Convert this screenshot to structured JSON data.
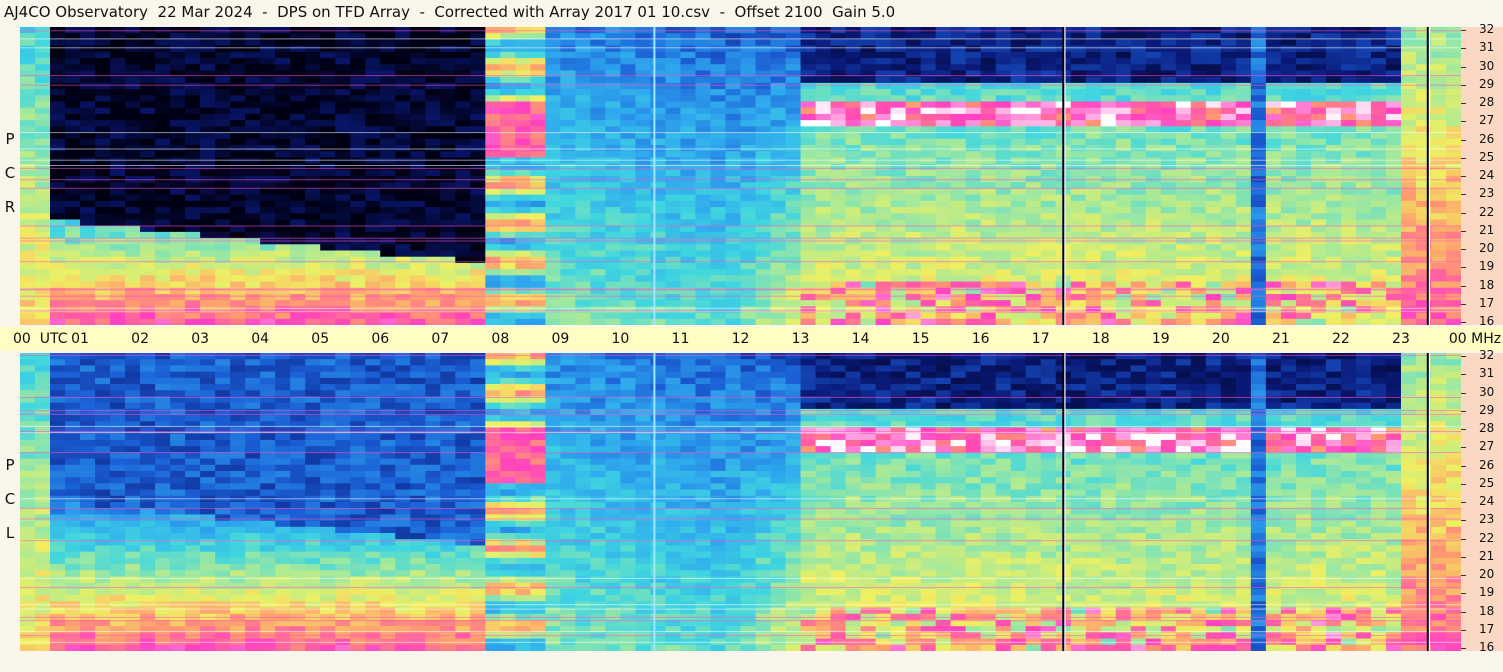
{
  "header": {
    "title": "AJ4CO Observatory  22 Mar 2024  -  DPS on TFD Array  -  Corrected with Array 2017 01 10.csv  -  Offset 2100  Gain 5.0"
  },
  "chart_data": {
    "type": "heatmap",
    "x_axis": {
      "range": [
        0,
        24
      ],
      "ticks": [
        "00",
        "01",
        "02",
        "03",
        "04",
        "05",
        "06",
        "07",
        "08",
        "09",
        "10",
        "11",
        "12",
        "13",
        "14",
        "15",
        "16",
        "17",
        "18",
        "19",
        "20",
        "21",
        "22",
        "23",
        "00"
      ],
      "label": "UTC"
    },
    "y_axis": {
      "range": [
        16,
        32
      ],
      "ticks": [
        32,
        31,
        30,
        29,
        28,
        27,
        26,
        25,
        24,
        23,
        22,
        21,
        20,
        19,
        18,
        17,
        16
      ],
      "unit": "MHz"
    },
    "panels": [
      {
        "name": "RCP",
        "letters": [
          "R",
          "C",
          "P"
        ]
      },
      {
        "name": "LCP",
        "letters": [
          "L",
          "C",
          "P"
        ]
      }
    ],
    "colors": {
      "colormap": [
        "#000014",
        "#0a1a7a",
        "#1b5fd6",
        "#2fa8ee",
        "#3fd6e0",
        "#9ee8a0",
        "#f0f060",
        "#ff9a70",
        "#ff40c0",
        "#ffffff"
      ],
      "axis_bg": "#fffcc4",
      "freq_bg": "#fbd8c4"
    }
  }
}
